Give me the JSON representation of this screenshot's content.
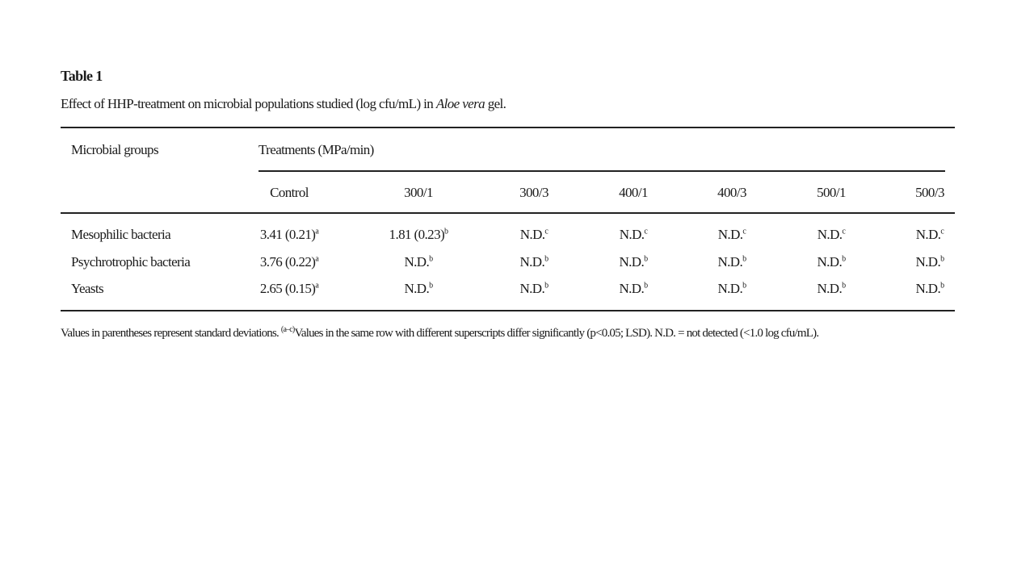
{
  "table_label": "Table 1",
  "caption": {
    "before": "Effect of HHP-treatment on microbial populations studied (log cfu/mL) in ",
    "italic": "Aloe vera",
    "after": " gel."
  },
  "table": {
    "row_header": "Microbial groups",
    "group_header": "Treatments (MPa/min)",
    "columns": [
      "Control",
      "300/1",
      "300/3",
      "400/1",
      "400/3",
      "500/1",
      "500/3"
    ],
    "rows": [
      {
        "label": "Mesophilic bacteria",
        "cells": [
          {
            "text": "3.41 (0.21)",
            "sup": "a"
          },
          {
            "text": "1.81 (0.23)",
            "sup": "b"
          },
          {
            "text": "N.D.",
            "sup": "c"
          },
          {
            "text": "N.D.",
            "sup": "c"
          },
          {
            "text": "N.D.",
            "sup": "c"
          },
          {
            "text": "N.D.",
            "sup": "c"
          },
          {
            "text": "N.D.",
            "sup": "c"
          }
        ]
      },
      {
        "label": "Psychrotrophic bacteria",
        "cells": [
          {
            "text": "3.76 (0.22)",
            "sup": "a"
          },
          {
            "text": "N.D.",
            "sup": "b"
          },
          {
            "text": "N.D.",
            "sup": "b"
          },
          {
            "text": "N.D.",
            "sup": "b"
          },
          {
            "text": "N.D.",
            "sup": "b"
          },
          {
            "text": "N.D.",
            "sup": "b"
          },
          {
            "text": "N.D.",
            "sup": "b"
          }
        ]
      },
      {
        "label": "Yeasts",
        "cells": [
          {
            "text": "2.65 (0.15)",
            "sup": "a"
          },
          {
            "text": "N.D.",
            "sup": "b"
          },
          {
            "text": "N.D.",
            "sup": "b"
          },
          {
            "text": "N.D.",
            "sup": "b"
          },
          {
            "text": "N.D.",
            "sup": "b"
          },
          {
            "text": "N.D.",
            "sup": "b"
          },
          {
            "text": "N.D.",
            "sup": "b"
          }
        ]
      }
    ]
  },
  "footnote": {
    "before": "Values in parentheses represent standard deviations. ",
    "sup": "(a–c)",
    "after": "Values in the same row with different superscripts differ significantly (p<0.05; LSD). N.D. = not detected (<1.0 log cfu/mL)."
  }
}
